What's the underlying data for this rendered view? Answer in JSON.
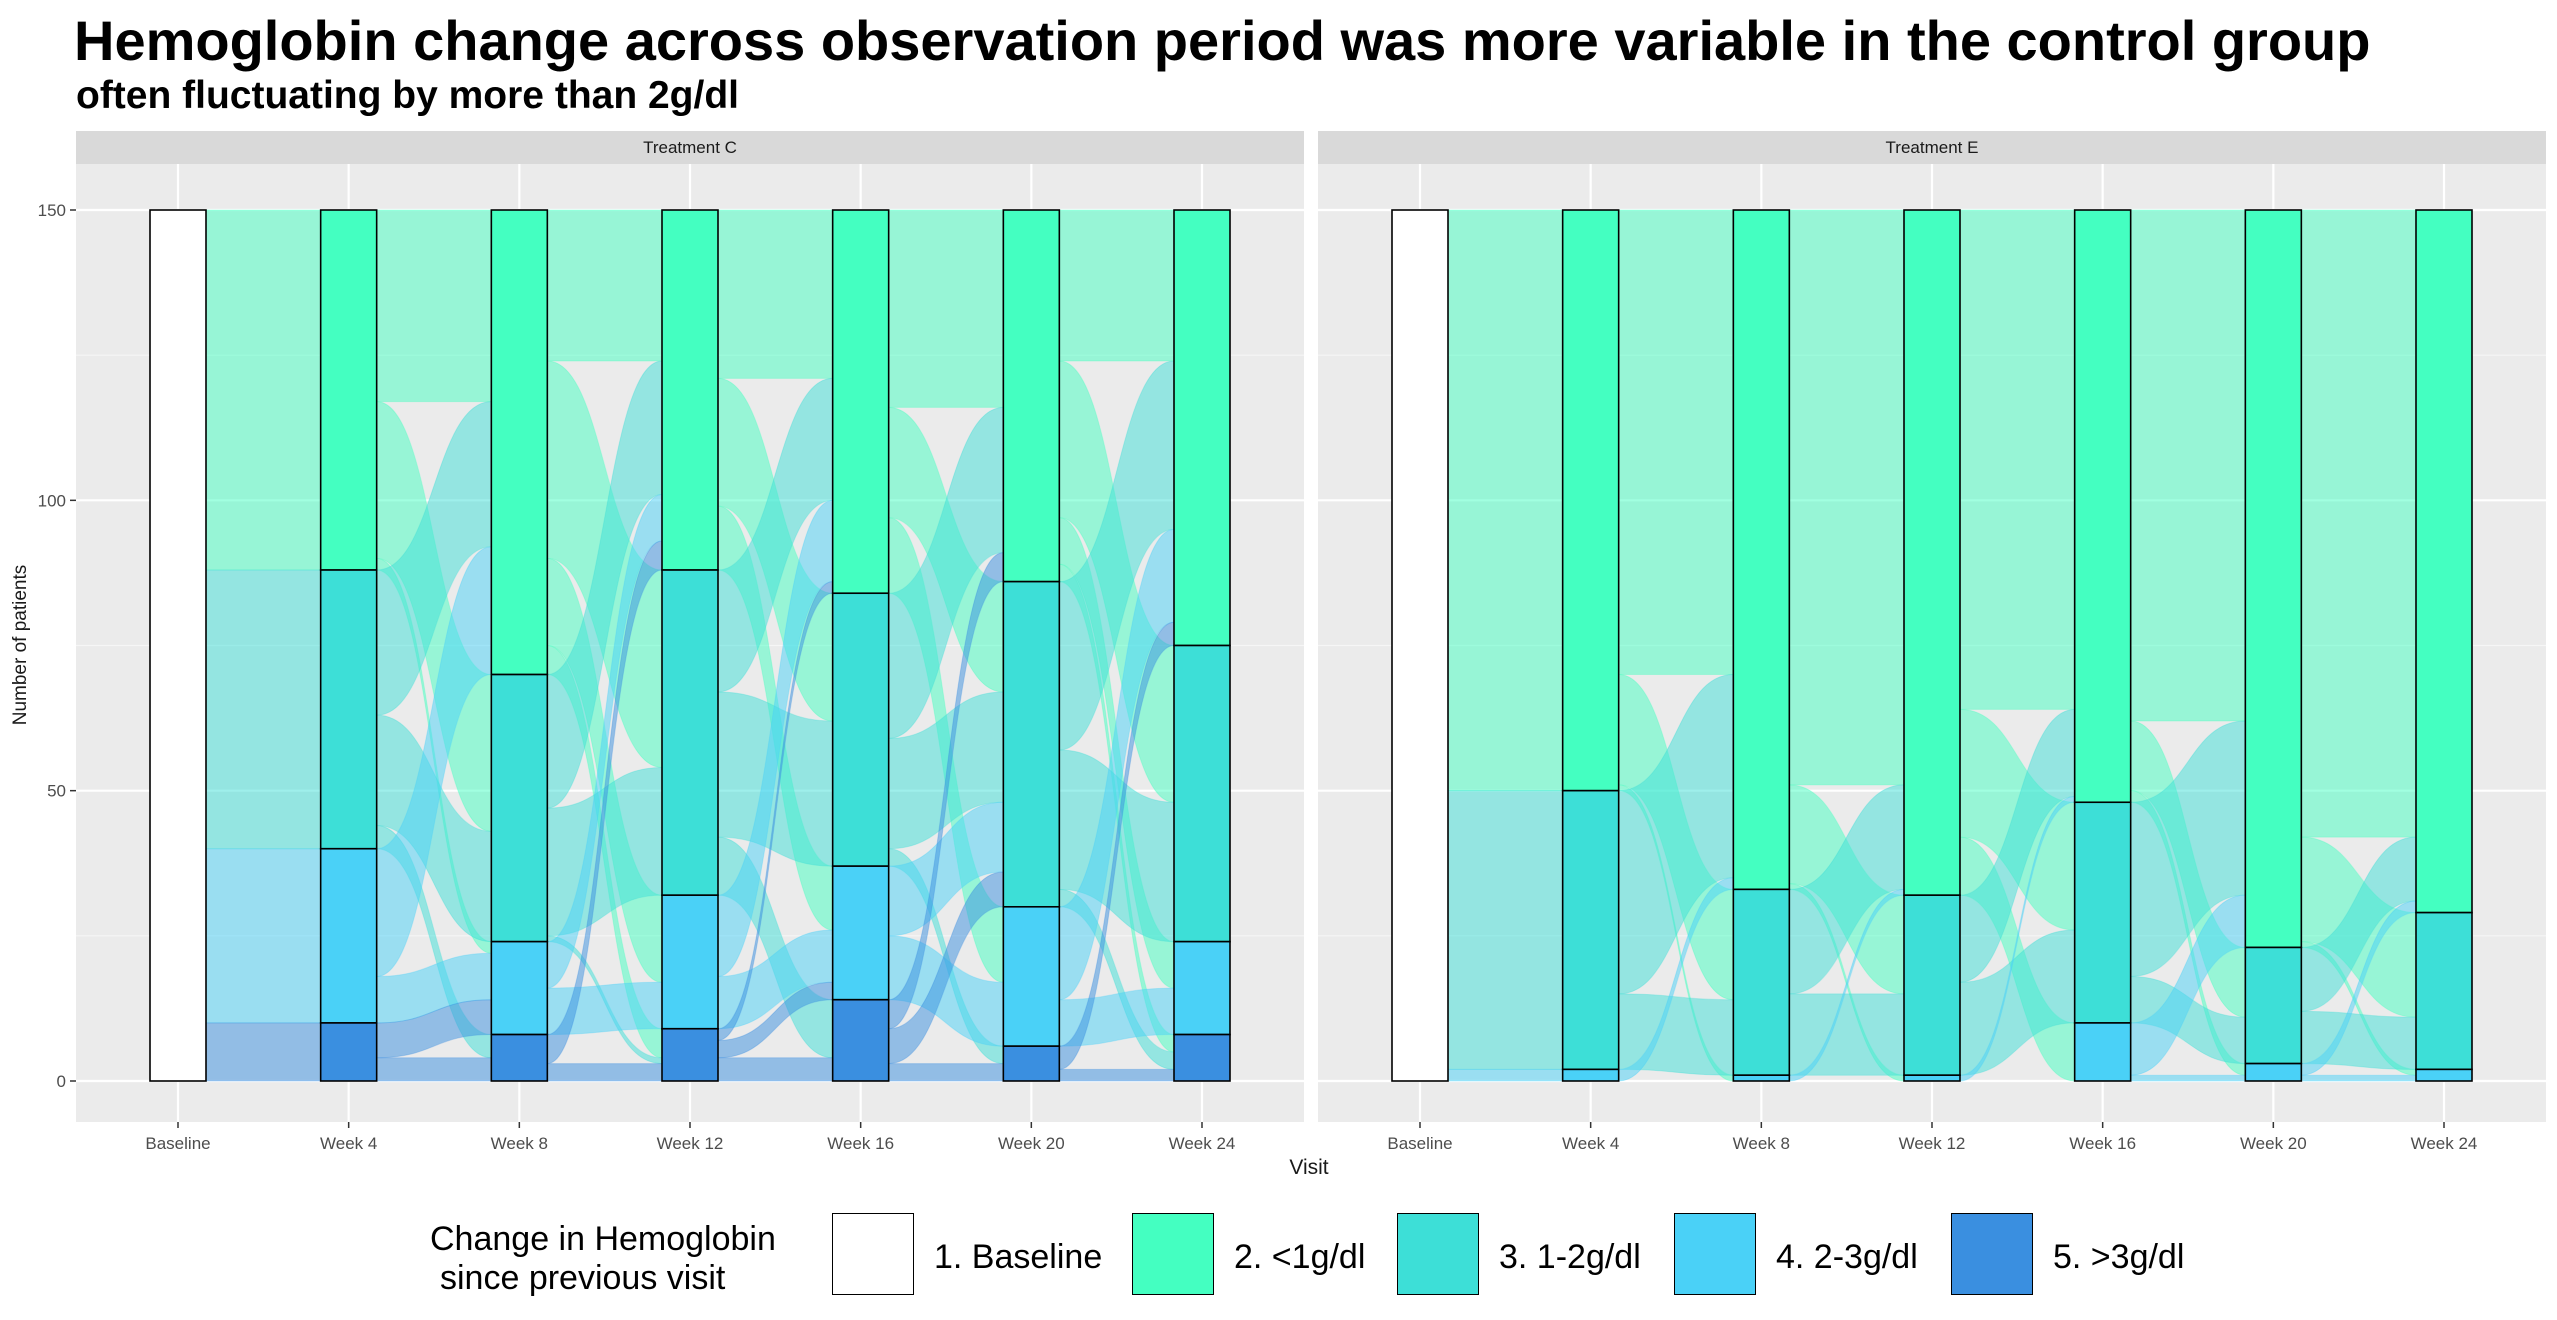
{
  "title": "Hemoglobin change across observation period was more variable in the control group",
  "subtitle": "often fluctuating by more than 2g/dl",
  "chart_data": {
    "type": "alluvial",
    "xlabel": "Visit",
    "ylabel": "Number of patients",
    "ylim": [
      0,
      150
    ],
    "yticks": [
      0,
      50,
      100,
      150
    ],
    "visits": [
      "Baseline",
      "Week 4",
      "Week 8",
      "Week 12",
      "Week 16",
      "Week 20",
      "Week 24"
    ],
    "legend": {
      "title_lines": [
        "Change in Hemoglobin",
        "since previous visit"
      ],
      "position": "bottom",
      "categories": [
        {
          "label": "1. Baseline",
          "color": "#ffffff"
        },
        {
          "label": "2. <1g/dl",
          "color": "#44ffc1"
        },
        {
          "label": "3. 1-2g/dl",
          "color": "#3ddfd7"
        },
        {
          "label": "4. 2-3g/dl",
          "color": "#4ad1f7"
        },
        {
          "label": "5. >3g/dl",
          "color": "#3a8fe0"
        }
      ]
    },
    "facets": [
      {
        "name": "Treatment C",
        "stacks": [
          [
            150,
            0,
            0,
            0,
            0
          ],
          [
            0,
            62,
            48,
            30,
            10
          ],
          [
            0,
            80,
            46,
            16,
            8
          ],
          [
            0,
            62,
            56,
            23,
            9
          ],
          [
            0,
            66,
            47,
            23,
            14
          ],
          [
            0,
            64,
            56,
            24,
            6
          ],
          [
            0,
            75,
            51,
            16,
            8
          ]
        ]
      },
      {
        "name": "Treatment E",
        "stacks": [
          [
            150,
            0,
            0,
            0,
            0
          ],
          [
            0,
            100,
            48,
            2,
            0
          ],
          [
            0,
            117,
            32,
            1,
            0
          ],
          [
            0,
            118,
            31,
            1,
            0
          ],
          [
            0,
            102,
            38,
            10,
            0
          ],
          [
            0,
            127,
            20,
            3,
            0
          ],
          [
            0,
            121,
            27,
            2,
            0
          ]
        ]
      }
    ]
  }
}
